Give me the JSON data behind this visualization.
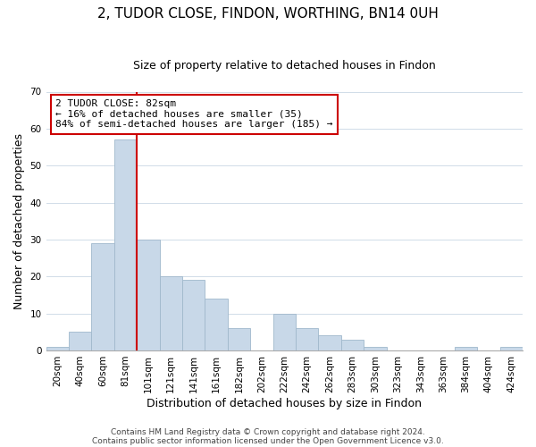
{
  "title": "2, TUDOR CLOSE, FINDON, WORTHING, BN14 0UH",
  "subtitle": "Size of property relative to detached houses in Findon",
  "xlabel": "Distribution of detached houses by size in Findon",
  "ylabel": "Number of detached properties",
  "bar_labels": [
    "20sqm",
    "40sqm",
    "60sqm",
    "81sqm",
    "101sqm",
    "121sqm",
    "141sqm",
    "161sqm",
    "182sqm",
    "202sqm",
    "222sqm",
    "242sqm",
    "262sqm",
    "283sqm",
    "303sqm",
    "323sqm",
    "343sqm",
    "363sqm",
    "384sqm",
    "404sqm",
    "424sqm"
  ],
  "bar_values": [
    1,
    5,
    29,
    57,
    30,
    20,
    19,
    14,
    6,
    0,
    10,
    6,
    4,
    3,
    1,
    0,
    0,
    0,
    1,
    0,
    1
  ],
  "bar_color": "#c8d8e8",
  "bar_edge_color": "#a0b8cc",
  "highlight_index": 3,
  "highlight_line_color": "#cc0000",
  "ylim": [
    0,
    70
  ],
  "yticks": [
    0,
    10,
    20,
    30,
    40,
    50,
    60,
    70
  ],
  "annotation_text": "2 TUDOR CLOSE: 82sqm\n← 16% of detached houses are smaller (35)\n84% of semi-detached houses are larger (185) →",
  "annotation_box_color": "#ffffff",
  "annotation_box_edge": "#cc0000",
  "footer1": "Contains HM Land Registry data © Crown copyright and database right 2024.",
  "footer2": "Contains public sector information licensed under the Open Government Licence v3.0.",
  "title_fontsize": 11,
  "subtitle_fontsize": 9,
  "axis_label_fontsize": 9,
  "tick_fontsize": 7.5,
  "annotation_fontsize": 8,
  "footer_fontsize": 6.5
}
